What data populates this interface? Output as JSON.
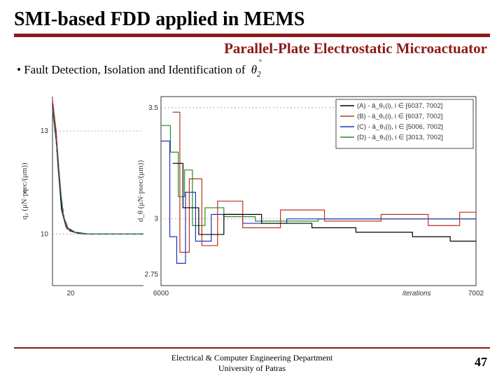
{
  "title": "SMI-based FDD applied in MEMS",
  "subtitle": "Parallel-Plate Electrostatic Microactuator",
  "bullet": "Fault Detection, Isolation and Identification of ",
  "bullet_symbol": "θ",
  "bullet_sub": "2",
  "bullet_sup": "°",
  "footer_line1": "Electrical & Computer Engineering Department",
  "footer_line2": "University of Patras",
  "page_number": "47",
  "left_chart": {
    "ylabel": "q₂ (μN·psec/(μm))",
    "yticks": [
      {
        "v": 10,
        "label": "10"
      },
      {
        "v": 13,
        "label": "13"
      }
    ],
    "xticks": [
      {
        "v": 20,
        "label": "20"
      }
    ],
    "xlim": [
      0,
      100
    ],
    "ylim": [
      8.5,
      14
    ],
    "grid_color": "#bfa0a0",
    "series": [
      {
        "color": "#000000",
        "style": "solid",
        "pts": [
          [
            0,
            13.8
          ],
          [
            3,
            13.2
          ],
          [
            6,
            12.0
          ],
          [
            10,
            10.7
          ],
          [
            15,
            10.2
          ],
          [
            25,
            10.05
          ],
          [
            40,
            10.0
          ],
          [
            100,
            10.0
          ]
        ]
      },
      {
        "color": "#c03020",
        "style": "solid",
        "pts": [
          [
            0,
            13.9
          ],
          [
            4,
            13.0
          ],
          [
            7,
            11.9
          ],
          [
            11,
            10.65
          ],
          [
            16,
            10.15
          ],
          [
            26,
            10.03
          ],
          [
            40,
            10.0
          ],
          [
            100,
            10.0
          ]
        ]
      },
      {
        "color": "#2030c0",
        "style": "dash",
        "pts": [
          [
            0,
            13.7
          ],
          [
            4,
            12.7
          ],
          [
            8,
            11.4
          ],
          [
            12,
            10.5
          ],
          [
            18,
            10.1
          ],
          [
            28,
            10.02
          ],
          [
            40,
            10.0
          ],
          [
            100,
            10.0
          ]
        ]
      },
      {
        "color": "#209020",
        "style": "dash",
        "pts": [
          [
            0,
            13.6
          ],
          [
            5,
            12.5
          ],
          [
            9,
            11.2
          ],
          [
            13,
            10.45
          ],
          [
            19,
            10.08
          ],
          [
            30,
            10.01
          ],
          [
            45,
            10.0
          ],
          [
            100,
            10.0
          ]
        ]
      }
    ]
  },
  "right_chart": {
    "ylabel": "d_θ  (μN·psec/(μm))",
    "xlabel": "iterations",
    "yticks": [
      {
        "v": 2.75,
        "label": "2.75"
      },
      {
        "v": 3,
        "label": "3"
      },
      {
        "v": 3.5,
        "label": "3.5"
      }
    ],
    "xticks": [
      {
        "v": 6000,
        "label": "6000"
      },
      {
        "v": 7002,
        "label": "7002"
      }
    ],
    "xlim": [
      6000,
      7002
    ],
    "ylim": [
      2.7,
      3.55
    ],
    "grid_color": "#bfa0a0",
    "legend": [
      {
        "label": "(A) - â_θ₁(i), i ∈ [6037, 7002]",
        "color": "#000000"
      },
      {
        "label": "(B) - â_θ₁(i), i ∈ [6037, 7002]",
        "color": "#c03020"
      },
      {
        "label": "(C) - â_θ₁(i), i ∈ [5006, 7002]",
        "color": "#2030c0"
      },
      {
        "label": "(D) - â_θ₁(i), i ∈ [3013, 7002]",
        "color": "#209020"
      }
    ],
    "series": [
      {
        "color": "#209020",
        "pts": [
          [
            6000,
            3.42
          ],
          [
            6030,
            3.42
          ],
          [
            6030,
            3.3
          ],
          [
            6055,
            3.3
          ],
          [
            6055,
            3.1
          ],
          [
            6075,
            3.1
          ],
          [
            6075,
            3.22
          ],
          [
            6100,
            3.22
          ],
          [
            6100,
            2.97
          ],
          [
            6140,
            2.97
          ],
          [
            6140,
            3.05
          ],
          [
            6200,
            3.05
          ],
          [
            6200,
            3.01
          ],
          [
            6300,
            3.01
          ],
          [
            6300,
            2.99
          ],
          [
            6500,
            2.99
          ],
          [
            6500,
            3.0
          ],
          [
            7002,
            3.0
          ]
        ]
      },
      {
        "color": "#2030c0",
        "pts": [
          [
            6000,
            3.35
          ],
          [
            6028,
            3.35
          ],
          [
            6028,
            2.92
          ],
          [
            6050,
            2.92
          ],
          [
            6050,
            2.8
          ],
          [
            6078,
            2.8
          ],
          [
            6078,
            3.12
          ],
          [
            6110,
            3.12
          ],
          [
            6110,
            2.9
          ],
          [
            6160,
            2.9
          ],
          [
            6160,
            3.02
          ],
          [
            6260,
            3.02
          ],
          [
            6260,
            2.98
          ],
          [
            6400,
            2.98
          ],
          [
            6400,
            3.0
          ],
          [
            7002,
            3.0
          ]
        ]
      },
      {
        "color": "#c03020",
        "pts": [
          [
            6037,
            3.48
          ],
          [
            6060,
            3.48
          ],
          [
            6060,
            2.85
          ],
          [
            6090,
            2.85
          ],
          [
            6090,
            3.18
          ],
          [
            6130,
            3.18
          ],
          [
            6130,
            2.88
          ],
          [
            6180,
            2.88
          ],
          [
            6180,
            3.08
          ],
          [
            6260,
            3.08
          ],
          [
            6260,
            2.96
          ],
          [
            6380,
            2.96
          ],
          [
            6380,
            3.04
          ],
          [
            6520,
            3.04
          ],
          [
            6520,
            2.99
          ],
          [
            6700,
            2.99
          ],
          [
            6700,
            3.02
          ],
          [
            6850,
            3.02
          ],
          [
            6850,
            2.97
          ],
          [
            6950,
            2.97
          ],
          [
            6950,
            3.03
          ],
          [
            7002,
            3.03
          ]
        ]
      },
      {
        "color": "#000000",
        "pts": [
          [
            6037,
            3.25
          ],
          [
            6070,
            3.25
          ],
          [
            6070,
            3.05
          ],
          [
            6120,
            3.05
          ],
          [
            6120,
            2.93
          ],
          [
            6200,
            2.93
          ],
          [
            6200,
            3.02
          ],
          [
            6320,
            3.02
          ],
          [
            6320,
            2.98
          ],
          [
            6480,
            2.98
          ],
          [
            6480,
            2.96
          ],
          [
            6620,
            2.96
          ],
          [
            6620,
            2.94
          ],
          [
            6800,
            2.94
          ],
          [
            6800,
            2.92
          ],
          [
            6920,
            2.92
          ],
          [
            6920,
            2.9
          ],
          [
            7002,
            2.9
          ]
        ]
      }
    ]
  }
}
